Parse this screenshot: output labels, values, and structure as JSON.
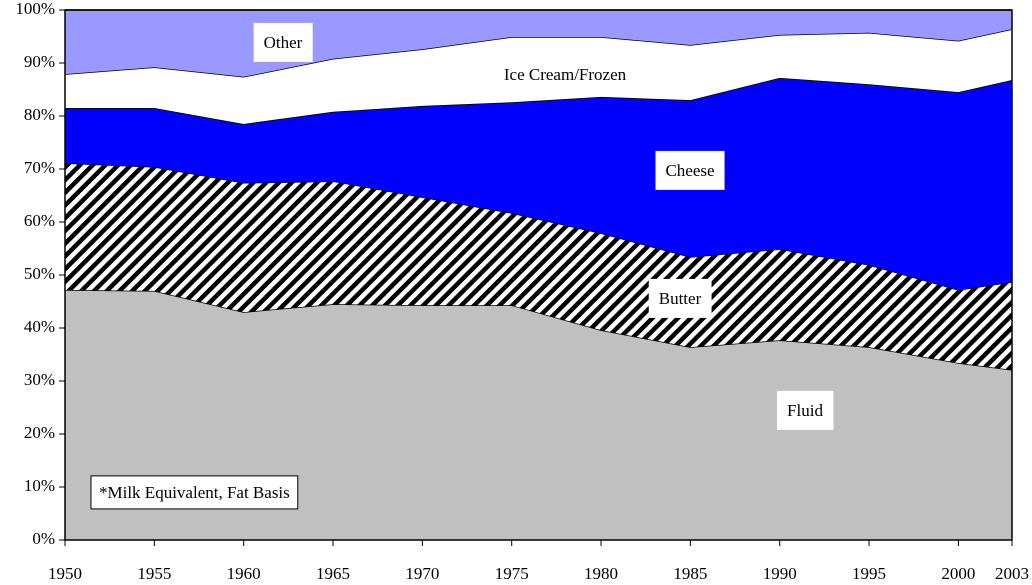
{
  "chart_data": {
    "type": "stacked_area",
    "annotation": "*Milk Equivalent, Fat Basis",
    "x": [
      1950,
      1955,
      1960,
      1965,
      1970,
      1975,
      1980,
      1985,
      1990,
      1995,
      2000,
      2003
    ],
    "series": [
      {
        "name": "Fluid",
        "color": "#c0c0c0",
        "values": [
          47.2,
          47.0,
          43.0,
          44.5,
          44.3,
          44.3,
          39.6,
          36.4,
          37.7,
          36.4,
          33.4,
          32.1
        ]
      },
      {
        "name": "Butter",
        "color": "#000000",
        "hatch": true,
        "values": [
          23.9,
          23.4,
          24.4,
          23.2,
          20.4,
          17.4,
          18.3,
          17.0,
          17.2,
          15.5,
          13.8,
          16.6
        ]
      },
      {
        "name": "Cheese",
        "color": "#0000ff",
        "values": [
          10.4,
          11.1,
          11.1,
          13.1,
          17.2,
          20.9,
          25.7,
          29.6,
          32.3,
          34.1,
          37.3,
          38.1
        ]
      },
      {
        "name": "Ice Cream/Frozen",
        "color": "#ffffff",
        "values": [
          6.4,
          7.7,
          8.9,
          10.0,
          10.7,
          12.3,
          11.3,
          10.4,
          8.1,
          9.7,
          9.7,
          9.6
        ]
      },
      {
        "name": "Other",
        "color": "#9999ff",
        "values": [
          12.1,
          10.8,
          12.6,
          9.2,
          7.4,
          5.1,
          5.1,
          6.6,
          4.7,
          4.3,
          5.8,
          3.6
        ]
      }
    ],
    "xlim": [
      1950,
      2003
    ],
    "xticks": [
      1950,
      1955,
      1960,
      1965,
      1970,
      1975,
      1980,
      1985,
      1990,
      1995,
      2000,
      2003
    ],
    "ylim": [
      0,
      100
    ],
    "yticks": [
      {
        "value": 0,
        "label": "0%"
      },
      {
        "value": 10,
        "label": "10%"
      },
      {
        "value": 20,
        "label": "20%"
      },
      {
        "value": 30,
        "label": "30%"
      },
      {
        "value": 40,
        "label": "40%"
      },
      {
        "value": 50,
        "label": "50%"
      },
      {
        "value": 60,
        "label": "60%"
      },
      {
        "value": 70,
        "label": "70%"
      },
      {
        "value": 80,
        "label": "80%"
      },
      {
        "value": 90,
        "label": "90%"
      },
      {
        "value": 100,
        "label": "100%"
      }
    ]
  }
}
